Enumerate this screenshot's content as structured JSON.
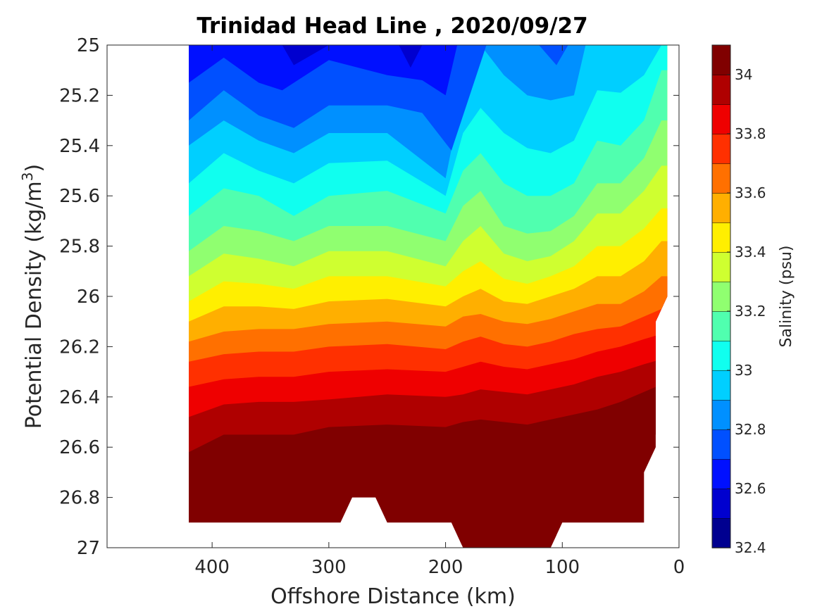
{
  "chart_data": {
    "type": "contour",
    "title": "Trinidad Head Line , 2020/09/27",
    "xlabel": "Offshore Distance (km)",
    "ylabel_main": "Potential Density (kg/m",
    "ylabel_sup": "3",
    "ylabel_close": ")",
    "xlim": [
      490,
      0
    ],
    "x_reversed": true,
    "ylim": [
      25,
      27
    ],
    "y_reversed": true,
    "x_ticks": [
      400,
      300,
      200,
      100,
      0
    ],
    "y_ticks": [
      "25",
      "25.2",
      "25.4",
      "25.6",
      "25.8",
      "26",
      "26.2",
      "26.4",
      "26.6",
      "26.8",
      "27"
    ],
    "y_tick_values": [
      25,
      25.2,
      25.4,
      25.6,
      25.8,
      26,
      26.2,
      26.4,
      26.6,
      26.8,
      27
    ],
    "colorbar": {
      "label": "Salinity (psu)",
      "range": [
        32.4,
        34.1
      ],
      "tick_labels": [
        "32.4",
        "32.6",
        "32.8",
        "33",
        "33.2",
        "33.4",
        "33.6",
        "33.8",
        "34"
      ],
      "tick_values": [
        32.4,
        32.6,
        32.8,
        33.0,
        33.2,
        33.4,
        33.6,
        33.8,
        34.0
      ],
      "colormap": "jet",
      "level_colors": [
        "#000090",
        "#0000cf",
        "#0010ff",
        "#0050ff",
        "#0090ff",
        "#00cfff",
        "#10ffef",
        "#50ffaf",
        "#90ff70",
        "#cfff30",
        "#ffef00",
        "#ffaf00",
        "#ff7000",
        "#ff3000",
        "#ef0000",
        "#af0000",
        "#800000"
      ]
    },
    "levels": [
      32.5,
      32.6,
      32.7,
      32.8,
      32.9,
      33.0,
      33.1,
      33.2,
      33.3,
      33.4,
      33.5,
      33.6,
      33.7,
      33.8,
      33.9,
      34.0
    ],
    "isolines": [
      {
        "level": 32.5,
        "x": [
          340,
          330,
          300,
          240,
          230,
          220
        ],
        "y": [
          25.0,
          25.08,
          25.0,
          25.0,
          25.09,
          25.0
        ]
      },
      {
        "level": 32.6,
        "x": [
          420,
          390,
          360,
          340,
          300,
          250,
          220,
          200,
          190
        ],
        "y": [
          25.15,
          25.05,
          25.15,
          25.18,
          25.06,
          25.12,
          25.14,
          25.2,
          25.0
        ]
      },
      {
        "level": 32.7,
        "x": [
          420,
          390,
          360,
          330,
          300,
          250,
          220,
          195,
          165,
          120,
          105,
          95
        ],
        "y": [
          25.3,
          25.18,
          25.28,
          25.33,
          25.24,
          25.24,
          25.27,
          25.42,
          25.0,
          25.0,
          25.08,
          25.0
        ]
      },
      {
        "level": 32.8,
        "x": [
          420,
          390,
          360,
          330,
          300,
          250,
          200,
          190,
          170,
          150,
          130,
          110,
          90,
          80
        ],
        "y": [
          25.4,
          25.3,
          25.38,
          25.43,
          25.35,
          25.35,
          25.53,
          25.3,
          25.0,
          25.12,
          25.2,
          25.22,
          25.2,
          25.0
        ]
      },
      {
        "level": 32.9,
        "x": [
          420,
          390,
          360,
          330,
          300,
          250,
          200,
          185,
          170,
          150,
          130,
          110,
          90,
          70,
          50,
          30,
          15
        ],
        "y": [
          25.55,
          25.43,
          25.5,
          25.55,
          25.47,
          25.46,
          25.6,
          25.35,
          25.25,
          25.35,
          25.41,
          25.43,
          25.38,
          25.18,
          25.19,
          25.12,
          25.0
        ]
      },
      {
        "level": 33.0,
        "x": [
          420,
          390,
          360,
          330,
          300,
          250,
          200,
          185,
          170,
          150,
          130,
          110,
          90,
          70,
          50,
          30,
          15
        ],
        "y": [
          25.68,
          25.57,
          25.6,
          25.68,
          25.6,
          25.58,
          25.67,
          25.5,
          25.43,
          25.55,
          25.6,
          25.6,
          25.55,
          25.38,
          25.4,
          25.3,
          25.1
        ]
      },
      {
        "level": 33.1,
        "x": [
          420,
          390,
          360,
          330,
          300,
          250,
          200,
          185,
          170,
          150,
          130,
          110,
          90,
          70,
          50,
          30,
          15
        ],
        "y": [
          25.82,
          25.72,
          25.74,
          25.78,
          25.72,
          25.72,
          25.78,
          25.64,
          25.58,
          25.72,
          25.75,
          25.74,
          25.68,
          25.55,
          25.55,
          25.45,
          25.3
        ]
      },
      {
        "level": 33.2,
        "x": [
          420,
          390,
          360,
          330,
          300,
          250,
          200,
          185,
          170,
          150,
          130,
          110,
          90,
          70,
          50,
          30,
          15
        ],
        "y": [
          25.92,
          25.83,
          25.85,
          25.88,
          25.82,
          25.82,
          25.88,
          25.78,
          25.72,
          25.83,
          25.86,
          25.84,
          25.78,
          25.67,
          25.67,
          25.58,
          25.48
        ]
      },
      {
        "level": 33.3,
        "x": [
          420,
          390,
          360,
          330,
          300,
          250,
          200,
          185,
          170,
          150,
          130,
          110,
          90,
          70,
          50,
          30,
          15
        ],
        "y": [
          26.02,
          25.94,
          25.95,
          25.97,
          25.92,
          25.92,
          25.96,
          25.9,
          25.86,
          25.93,
          25.95,
          25.92,
          25.88,
          25.8,
          25.8,
          25.73,
          25.65
        ]
      },
      {
        "level": 33.4,
        "x": [
          420,
          390,
          360,
          330,
          300,
          250,
          200,
          185,
          170,
          150,
          130,
          110,
          90,
          70,
          50,
          30,
          15
        ],
        "y": [
          26.1,
          26.04,
          26.04,
          26.05,
          26.02,
          26.01,
          26.04,
          26.0,
          25.97,
          26.02,
          26.03,
          26.0,
          25.97,
          25.92,
          25.92,
          25.86,
          25.78
        ]
      },
      {
        "level": 33.5,
        "x": [
          420,
          390,
          360,
          330,
          300,
          250,
          200,
          185,
          170,
          150,
          130,
          110,
          90,
          70,
          50,
          30,
          15
        ],
        "y": [
          26.18,
          26.14,
          26.13,
          26.13,
          26.11,
          26.1,
          26.12,
          26.08,
          26.07,
          26.1,
          26.11,
          26.09,
          26.06,
          26.03,
          26.03,
          25.98,
          25.92
        ]
      },
      {
        "level": 33.6,
        "x": [
          420,
          390,
          360,
          330,
          300,
          250,
          200,
          185,
          170,
          150,
          130,
          110,
          90,
          70,
          50,
          30,
          15
        ],
        "y": [
          26.26,
          26.23,
          26.22,
          26.22,
          26.2,
          26.19,
          26.21,
          26.18,
          26.16,
          26.19,
          26.2,
          26.18,
          26.15,
          26.13,
          26.12,
          26.08,
          26.05
        ]
      },
      {
        "level": 33.7,
        "x": [
          420,
          390,
          360,
          330,
          300,
          250,
          200,
          185,
          170,
          150,
          130,
          110,
          90,
          70,
          50,
          30,
          15
        ],
        "y": [
          26.36,
          26.33,
          26.32,
          26.32,
          26.3,
          26.29,
          26.3,
          26.28,
          26.26,
          26.28,
          26.29,
          26.27,
          26.25,
          26.22,
          26.2,
          26.17,
          26.15
        ]
      },
      {
        "level": 33.8,
        "x": [
          420,
          390,
          360,
          330,
          300,
          250,
          200,
          185,
          170,
          150,
          130,
          110,
          90,
          70,
          50,
          30,
          15
        ],
        "y": [
          26.48,
          26.43,
          26.42,
          26.42,
          26.41,
          26.39,
          26.4,
          26.39,
          26.37,
          26.38,
          26.39,
          26.37,
          26.35,
          26.32,
          26.3,
          26.27,
          26.25
        ]
      },
      {
        "level": 33.9,
        "x": [
          420,
          390,
          360,
          330,
          300,
          250,
          200,
          185,
          170,
          150,
          130,
          110,
          90,
          70,
          50,
          30,
          15
        ],
        "y": [
          26.62,
          26.55,
          26.55,
          26.55,
          26.52,
          26.51,
          26.52,
          26.5,
          26.49,
          26.5,
          26.51,
          26.49,
          26.47,
          26.45,
          26.42,
          26.38,
          26.35
        ]
      },
      {
        "level": 34.0,
        "x": [
          420,
          390,
          370,
          350,
          330,
          300,
          280,
          260,
          240,
          220,
          200,
          180,
          160,
          140,
          120,
          100,
          80,
          60,
          40,
          20
        ],
        "y": [
          26.68,
          26.8,
          26.7,
          26.63,
          26.65,
          26.6,
          26.58,
          26.61,
          26.62,
          26.63,
          26.64,
          26.65,
          26.64,
          26.62,
          26.65,
          26.63,
          26.68,
          26.58,
          26.52,
          26.55
        ]
      },
      {
        "level": 34.1,
        "x": [
          190,
          170,
          150,
          130,
          110
        ],
        "y": [
          27.0,
          26.95,
          26.93,
          26.94,
          27.0
        ]
      }
    ],
    "data_extent": {
      "top_x_range": [
        420,
        10
      ],
      "bottom_edge_x": [
        420,
        290,
        280,
        260,
        250,
        195,
        185,
        110,
        100,
        30
      ],
      "bottom_edge_y": [
        26.9,
        26.9,
        26.8,
        26.8,
        26.9,
        26.9,
        27.0,
        27.0,
        26.9,
        26.9
      ],
      "right_edge_x": [
        10,
        10,
        20,
        20,
        30,
        30
      ],
      "right_edge_y": [
        25.0,
        26.0,
        26.1,
        26.6,
        26.7,
        26.9
      ]
    }
  }
}
